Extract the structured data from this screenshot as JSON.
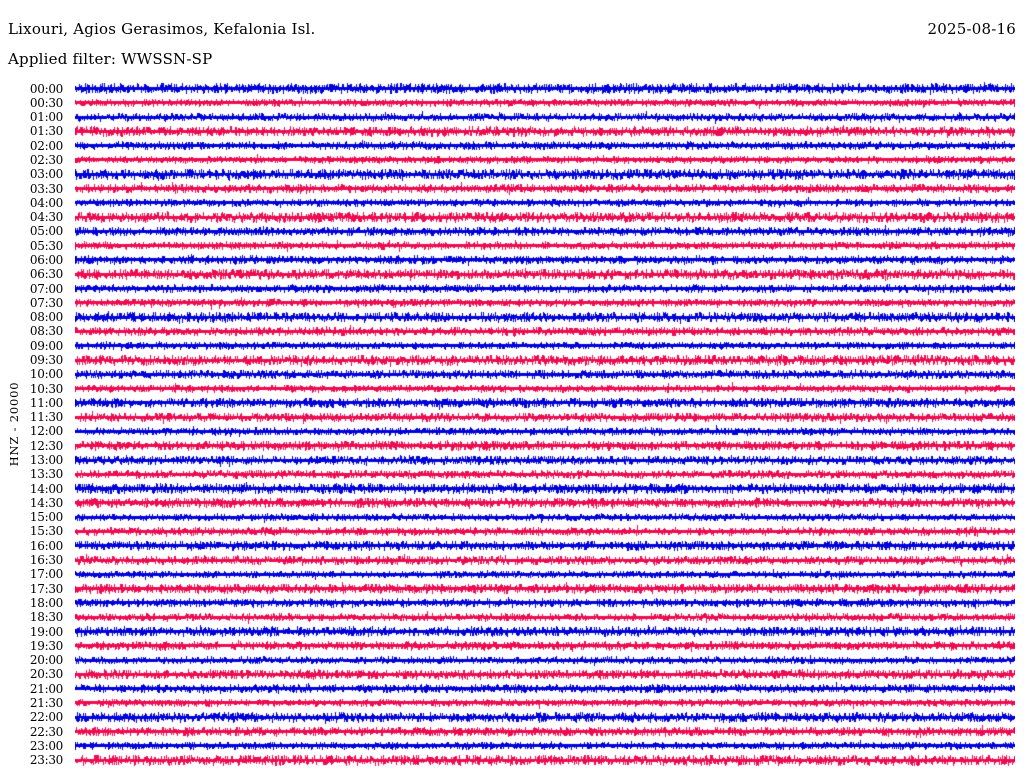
{
  "header": {
    "title": "Lixouri, Agios Gerasimos, Kefalonia Isl.",
    "date": "2025-08-16",
    "filter_line": "Applied filter: WWSSN-SP"
  },
  "chart_data": {
    "type": "line",
    "subtype": "helicorder-seismogram",
    "title": "Lixouri, Agios Gerasimos, Kefalonia Isl.",
    "date": "2025-08-16",
    "applied_filter": "WWSSN-SP",
    "y_axis_label": "HNZ - 20000",
    "channel": "HNZ",
    "scale": 20000,
    "row_duration_minutes": 30,
    "legend_position": "none",
    "grid": false,
    "trace_colors": {
      "hour_rows": "#0000DC",
      "half_hour_rows": "#F00A50"
    },
    "rows": [
      {
        "label": "00:00",
        "color": "#0000DC",
        "noise": 1.3
      },
      {
        "label": "00:30",
        "color": "#F00A50",
        "noise": 0.8
      },
      {
        "label": "01:00",
        "color": "#0000DC",
        "noise": 0.8
      },
      {
        "label": "01:30",
        "color": "#F00A50",
        "noise": 1.2
      },
      {
        "label": "02:00",
        "color": "#0000DC",
        "noise": 0.9
      },
      {
        "label": "02:30",
        "color": "#F00A50",
        "noise": 0.8
      },
      {
        "label": "03:00",
        "color": "#0000DC",
        "noise": 1.3
      },
      {
        "label": "03:30",
        "color": "#F00A50",
        "noise": 1.0
      },
      {
        "label": "04:00",
        "color": "#0000DC",
        "noise": 0.8
      },
      {
        "label": "04:30",
        "color": "#F00A50",
        "noise": 1.3
      },
      {
        "label": "05:00",
        "color": "#0000DC",
        "noise": 1.0
      },
      {
        "label": "05:30",
        "color": "#F00A50",
        "noise": 0.9
      },
      {
        "label": "06:00",
        "color": "#0000DC",
        "noise": 1.0
      },
      {
        "label": "06:30",
        "color": "#F00A50",
        "noise": 1.3
      },
      {
        "label": "07:00",
        "color": "#0000DC",
        "noise": 0.9
      },
      {
        "label": "07:30",
        "color": "#F00A50",
        "noise": 0.9
      },
      {
        "label": "08:00",
        "color": "#0000DC",
        "noise": 1.2
      },
      {
        "label": "08:30",
        "color": "#F00A50",
        "noise": 1.0
      },
      {
        "label": "09:00",
        "color": "#0000DC",
        "noise": 0.8
      },
      {
        "label": "09:30",
        "color": "#F00A50",
        "noise": 1.3
      },
      {
        "label": "10:00",
        "color": "#0000DC",
        "noise": 1.0
      },
      {
        "label": "10:30",
        "color": "#F00A50",
        "noise": 0.8
      },
      {
        "label": "11:00",
        "color": "#0000DC",
        "noise": 1.2
      },
      {
        "label": "11:30",
        "color": "#F00A50",
        "noise": 1.0
      },
      {
        "label": "12:00",
        "color": "#0000DC",
        "noise": 0.8
      },
      {
        "label": "12:30",
        "color": "#F00A50",
        "noise": 1.2
      },
      {
        "label": "13:00",
        "color": "#0000DC",
        "noise": 1.0
      },
      {
        "label": "13:30",
        "color": "#F00A50",
        "noise": 0.9
      },
      {
        "label": "14:00",
        "color": "#0000DC",
        "noise": 1.3
      },
      {
        "label": "14:30",
        "color": "#F00A50",
        "noise": 1.2
      },
      {
        "label": "15:00",
        "color": "#0000DC",
        "noise": 0.7
      },
      {
        "label": "15:30",
        "color": "#F00A50",
        "noise": 0.9
      },
      {
        "label": "16:00",
        "color": "#0000DC",
        "noise": 1.2
      },
      {
        "label": "16:30",
        "color": "#F00A50",
        "noise": 1.0
      },
      {
        "label": "17:00",
        "color": "#0000DC",
        "noise": 0.7
      },
      {
        "label": "17:30",
        "color": "#F00A50",
        "noise": 1.2
      },
      {
        "label": "18:00",
        "color": "#0000DC",
        "noise": 1.0
      },
      {
        "label": "18:30",
        "color": "#F00A50",
        "noise": 0.8
      },
      {
        "label": "19:00",
        "color": "#0000DC",
        "noise": 1.2
      },
      {
        "label": "19:30",
        "color": "#F00A50",
        "noise": 1.0
      },
      {
        "label": "20:00",
        "color": "#0000DC",
        "noise": 0.7
      },
      {
        "label": "20:30",
        "color": "#F00A50",
        "noise": 1.2
      },
      {
        "label": "21:00",
        "color": "#0000DC",
        "noise": 1.0
      },
      {
        "label": "21:30",
        "color": "#F00A50",
        "noise": 0.8
      },
      {
        "label": "22:00",
        "color": "#0000DC",
        "noise": 1.2
      },
      {
        "label": "22:30",
        "color": "#F00A50",
        "noise": 1.1
      },
      {
        "label": "23:00",
        "color": "#0000DC",
        "noise": 0.8
      },
      {
        "label": "23:30",
        "color": "#F00A50",
        "noise": 1.3
      }
    ]
  }
}
